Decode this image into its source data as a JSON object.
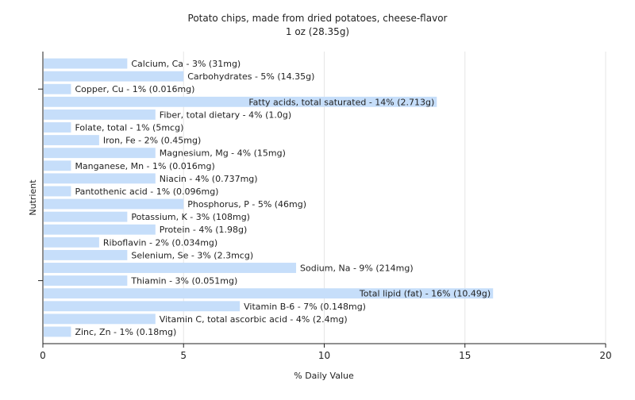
{
  "chart_data": {
    "type": "bar",
    "orientation": "horizontal",
    "title": "Potato chips, made from dried potatoes, cheese-flavor",
    "subtitle": "1 oz (28.35g)",
    "xlabel": "% Daily Value",
    "ylabel": "Nutrient",
    "xlim": [
      0,
      20
    ],
    "xticks": [
      0,
      5,
      10,
      15,
      20
    ],
    "grid": true,
    "bar_color": "#c6defa",
    "categories": [
      "Calcium, Ca",
      "Carbohydrates",
      "Copper, Cu",
      "Fatty acids, total saturated",
      "Fiber, total dietary",
      "Folate, total",
      "Iron, Fe",
      "Magnesium, Mg",
      "Manganese, Mn",
      "Niacin",
      "Pantothenic acid",
      "Phosphorus, P",
      "Potassium, K",
      "Protein",
      "Riboflavin",
      "Selenium, Se",
      "Sodium, Na",
      "Thiamin",
      "Total lipid (fat)",
      "Vitamin B-6",
      "Vitamin C, total ascorbic acid",
      "Zinc, Zn"
    ],
    "values": [
      3,
      5,
      1,
      14,
      4,
      1,
      2,
      4,
      1,
      4,
      1,
      5,
      3,
      4,
      2,
      3,
      9,
      3,
      16,
      7,
      4,
      1
    ],
    "labels": [
      "Calcium, Ca - 3% (31mg)",
      "Carbohydrates - 5% (14.35g)",
      "Copper, Cu - 1% (0.016mg)",
      "Fatty acids, total saturated - 14% (2.713g)",
      "Fiber, total dietary - 4% (1.0g)",
      "Folate, total - 1% (5mcg)",
      "Iron, Fe - 2% (0.45mg)",
      "Magnesium, Mg - 4% (15mg)",
      "Manganese, Mn - 1% (0.016mg)",
      "Niacin - 4% (0.737mg)",
      "Pantothenic acid - 1% (0.096mg)",
      "Phosphorus, P - 5% (46mg)",
      "Potassium, K - 3% (108mg)",
      "Protein - 4% (1.98g)",
      "Riboflavin - 2% (0.034mg)",
      "Selenium, Se - 3% (2.3mcg)",
      "Sodium, Na - 9% (214mg)",
      "Thiamin - 3% (0.051mg)",
      "Total lipid (fat) - 16% (10.49g)",
      "Vitamin B-6 - 7% (0.148mg)",
      "Vitamin C, total ascorbic acid - 4% (2.4mg)",
      "Zinc, Zn - 1% (0.18mg)"
    ]
  }
}
